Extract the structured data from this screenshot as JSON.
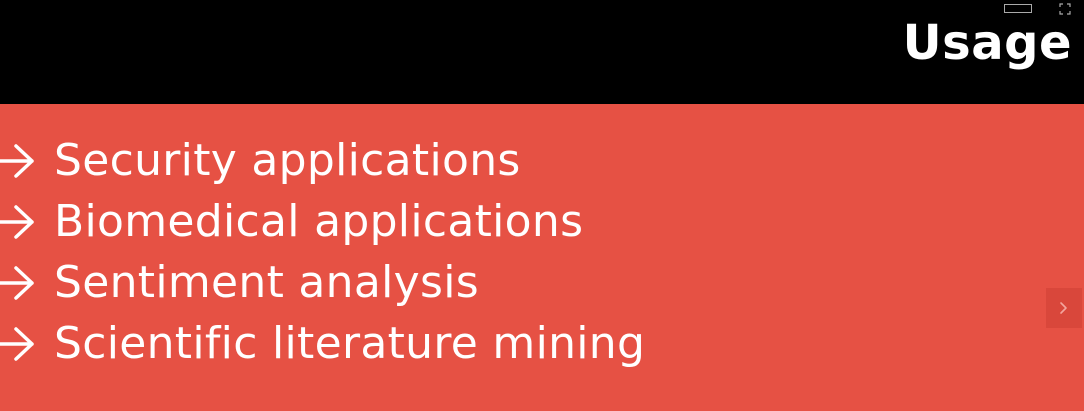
{
  "slide": {
    "title": "Usage",
    "items": [
      {
        "label": "Security applications"
      },
      {
        "label": "Biomedical applications"
      },
      {
        "label": "Sentiment analysis"
      },
      {
        "label": "Scientific literature mining"
      }
    ]
  },
  "controls": {
    "window_icon": "window-rect-icon",
    "fullscreen_icon": "fullscreen-icon",
    "next_icon": "chevron-right-icon"
  },
  "colors": {
    "header_bg": "#000000",
    "content_bg": "#e65144",
    "text": "#ffffff",
    "next_button_bg": "#d9473b"
  }
}
